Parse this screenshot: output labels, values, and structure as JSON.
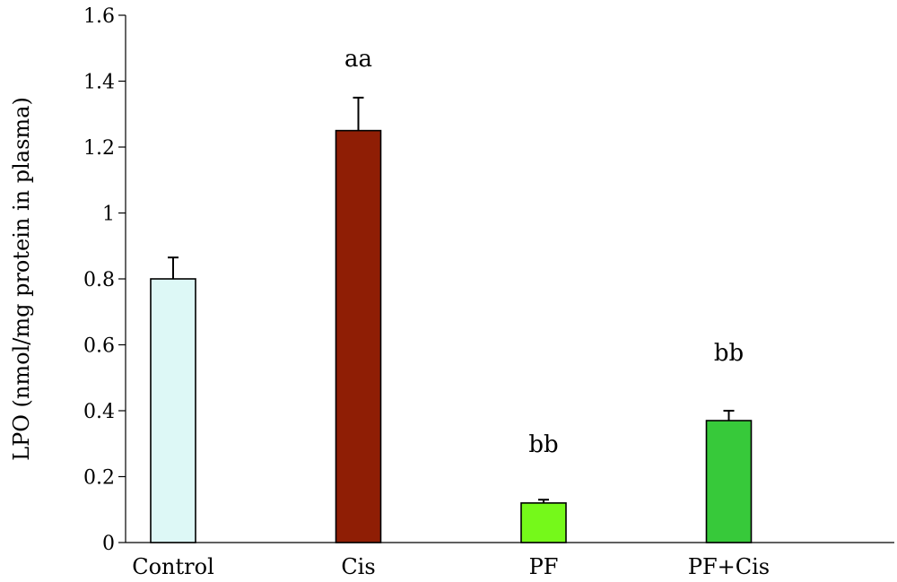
{
  "chart_data": {
    "type": "bar",
    "title": "",
    "xlabel": "",
    "ylabel": "LPO (nmol/mg protein in plasma)",
    "ylim": [
      0,
      1.6
    ],
    "yticks": [
      0,
      0.2,
      0.4,
      0.6,
      0.8,
      1,
      1.2,
      1.4,
      1.6
    ],
    "ytick_labels": [
      "0",
      "0.2",
      "0.4",
      "0.6",
      "0.8",
      "1",
      "1.2",
      "1.4",
      "1.6"
    ],
    "grid": false,
    "legend": "none",
    "categories": [
      "Control",
      "Cis",
      "PF",
      "PF+Cis"
    ],
    "values": [
      0.8,
      1.25,
      0.12,
      0.37
    ],
    "errors": [
      0.065,
      0.1,
      0.01,
      0.03
    ],
    "annotations": [
      "",
      "aa",
      "bb",
      "bb"
    ],
    "colors": [
      "#DDF8F6",
      "#8F1E05",
      "#75F91A",
      "#37C93A"
    ]
  }
}
